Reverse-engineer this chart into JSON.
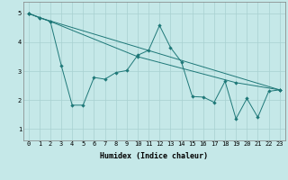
{
  "xlabel": "Humidex (Indice chaleur)",
  "bg_color": "#c5e8e8",
  "grid_color": "#a8d0d0",
  "line_color": "#1e7878",
  "spine_color": "#808080",
  "xlim": [
    -0.5,
    23.5
  ],
  "ylim": [
    0.6,
    5.4
  ],
  "yticks": [
    1,
    2,
    3,
    4,
    5
  ],
  "xticks": [
    0,
    1,
    2,
    3,
    4,
    5,
    6,
    7,
    8,
    9,
    10,
    11,
    12,
    13,
    14,
    15,
    16,
    17,
    18,
    19,
    20,
    21,
    22,
    23
  ],
  "line1_x": [
    0,
    1,
    23
  ],
  "line1_y": [
    5.0,
    4.85,
    2.35
  ],
  "line2_x": [
    0,
    2,
    10,
    19,
    23
  ],
  "line2_y": [
    5.0,
    4.72,
    3.5,
    2.6,
    2.35
  ],
  "line3_x": [
    0,
    1,
    2,
    3,
    4,
    5,
    6,
    7,
    8,
    9,
    10,
    11,
    12,
    13,
    14,
    15,
    16,
    17,
    18,
    19,
    20,
    21,
    22,
    23
  ],
  "line3_y": [
    5.0,
    4.85,
    4.72,
    3.2,
    1.82,
    1.82,
    2.78,
    2.72,
    2.95,
    3.02,
    3.55,
    3.72,
    4.58,
    3.82,
    3.32,
    2.12,
    2.1,
    1.92,
    2.65,
    1.35,
    2.05,
    1.4,
    2.3,
    2.35
  ],
  "tick_fontsize": 5.0,
  "xlabel_fontsize": 6.0,
  "marker_size": 2.2,
  "linewidth": 0.7
}
